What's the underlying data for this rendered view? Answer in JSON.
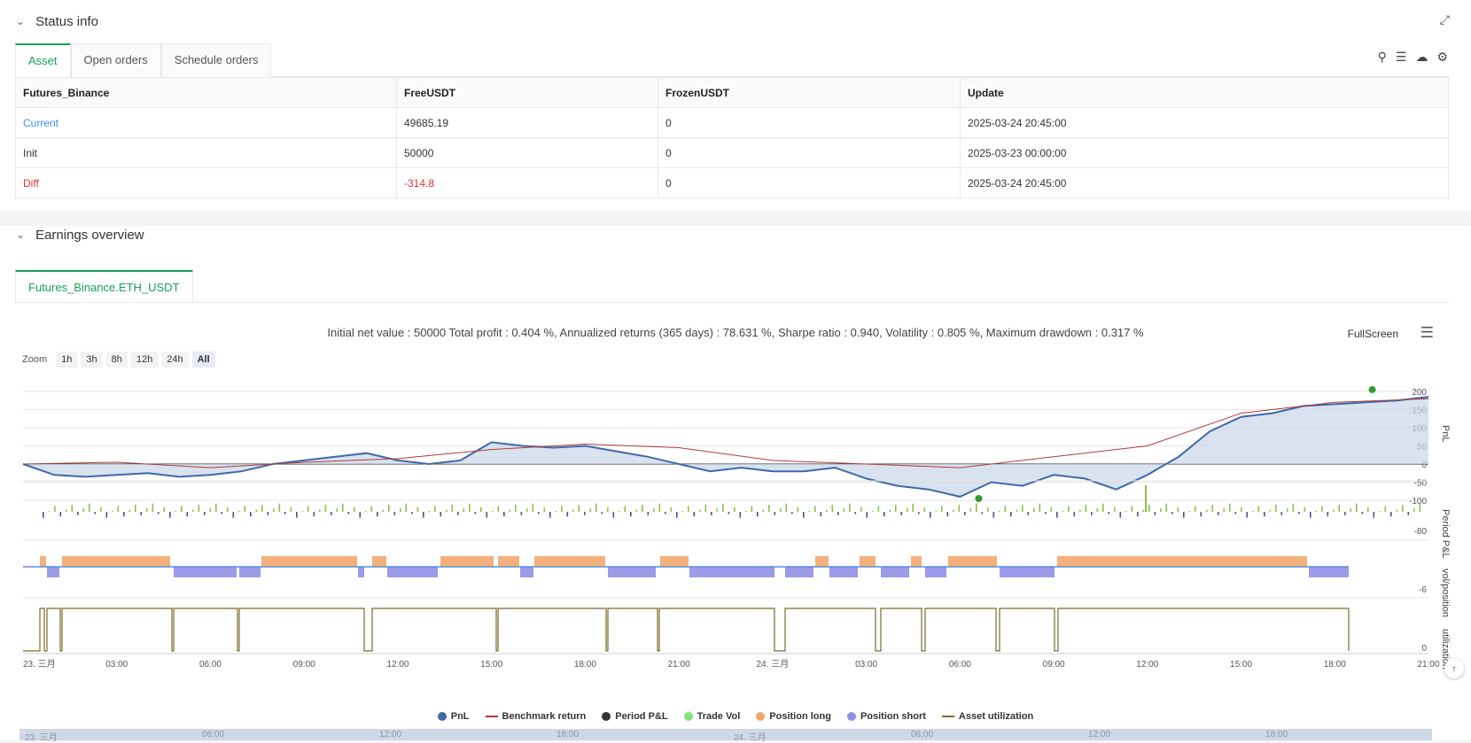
{
  "status": {
    "title": "Status info",
    "tabs": [
      "Asset",
      "Open orders",
      "Schedule orders"
    ],
    "table": {
      "headers": [
        "Futures_Binance",
        "FreeUSDT",
        "FrozenUSDT",
        "Update"
      ],
      "rows": [
        [
          "Current",
          "49685.19",
          "0",
          "2025-03-24 20:45:00"
        ],
        [
          "Init",
          "50000",
          "0",
          "2025-03-23 00:00:00"
        ],
        [
          "Diff",
          "-314.8",
          "0",
          "2025-03-24 20:45:00"
        ]
      ]
    },
    "icons": [
      "search-icon",
      "list-icon",
      "cloud-download-icon",
      "gear-icon"
    ]
  },
  "earnings": {
    "title": "Earnings overview",
    "tab": "Futures_Binance.ETH_USDT",
    "summary": "Initial net value : 50000 Total profit : 0.404 %, Annualized returns (365 days) : 78.631 %, Sharpe ratio : 0.940, Volatility : 0.805 %, Maximum drawdown : 0.317 %",
    "fullscreen_label": "FullScreen",
    "zoom_label": "Zoom",
    "zoom_options": [
      "1h",
      "3h",
      "8h",
      "12h",
      "24h",
      "All"
    ],
    "zoom_selected": "All",
    "legend": [
      {
        "label": "PnL",
        "color": "#3e6aa8",
        "kind": "dot"
      },
      {
        "label": "Benchmark return",
        "color": "#b03a3a",
        "kind": "line"
      },
      {
        "label": "Period P&L",
        "color": "#333333",
        "kind": "dot"
      },
      {
        "label": "Trade Vol",
        "color": "#86e07a",
        "kind": "dot"
      },
      {
        "label": "Position long",
        "color": "#f4a46a",
        "kind": "dot"
      },
      {
        "label": "Position short",
        "color": "#8f8fe8",
        "kind": "dot"
      },
      {
        "label": "Asset utilization",
        "color": "#7a6a2a",
        "kind": "line"
      }
    ],
    "navigator_labels": [
      "23. 三月",
      "06:00",
      "12:00",
      "18:00",
      "24. 三月",
      "06:00",
      "12:00",
      "18:00"
    ]
  },
  "chart_data": {
    "type": "line",
    "x_ticks": [
      "23. 三月",
      "03:00",
      "06:00",
      "09:00",
      "12:00",
      "15:00",
      "18:00",
      "21:00",
      "24. 三月",
      "03:00",
      "06:00",
      "09:00",
      "12:00",
      "15:00",
      "18:00",
      "21:00"
    ],
    "panes": [
      {
        "ylabel": "PnL",
        "ticks": [
          "200",
          "150",
          "100",
          "50",
          "0",
          "-50",
          "-100"
        ],
        "ylim": [
          -100,
          200
        ]
      },
      {
        "ylabel": "Period P&L",
        "ticks": [
          "-80"
        ]
      },
      {
        "ylabel": "vol/position",
        "ticks": [
          "-6"
        ]
      },
      {
        "ylabel": "utilization",
        "ticks": [
          "0"
        ]
      }
    ],
    "series": [
      {
        "name": "PnL",
        "x_hours": [
          0,
          1,
          2,
          3,
          4,
          5,
          6,
          7,
          8,
          9,
          10,
          11,
          12,
          13,
          14,
          15,
          16,
          17,
          18,
          19,
          20,
          21,
          22,
          23,
          24,
          25,
          26,
          27,
          28,
          29,
          30,
          31,
          32,
          33,
          34,
          35,
          36,
          37,
          38,
          39,
          40,
          41,
          42,
          43,
          44,
          45
        ],
        "values": [
          0,
          -30,
          -35,
          -30,
          -25,
          -35,
          -30,
          -20,
          0,
          10,
          20,
          30,
          10,
          0,
          10,
          60,
          50,
          45,
          50,
          35,
          20,
          0,
          -20,
          -10,
          -20,
          -20,
          -10,
          -40,
          -60,
          -70,
          -90,
          -50,
          -60,
          -30,
          -40,
          -70,
          -30,
          20,
          90,
          130,
          140,
          160,
          165,
          170,
          175,
          185
        ]
      },
      {
        "name": "Benchmark return",
        "x_hours": [
          0,
          3,
          6,
          9,
          12,
          15,
          18,
          21,
          24,
          27,
          30,
          33,
          36,
          39,
          42,
          45
        ],
        "values": [
          0,
          5,
          -10,
          5,
          15,
          40,
          55,
          45,
          10,
          0,
          -10,
          20,
          50,
          140,
          170,
          180
        ]
      }
    ],
    "markers": [
      {
        "label": "min",
        "x_hour": 30.6,
        "value": -95
      },
      {
        "label": "max",
        "x_hour": 43.2,
        "value": 205
      }
    ]
  }
}
